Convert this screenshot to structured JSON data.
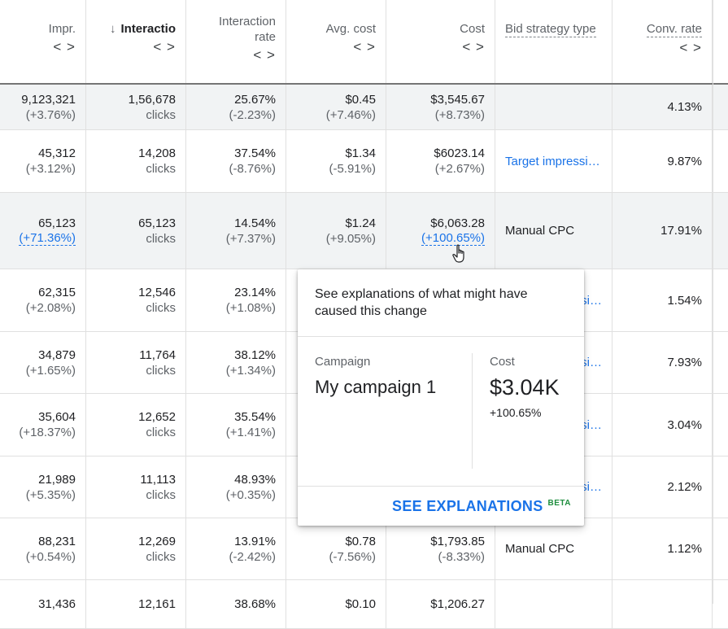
{
  "columns": [
    {
      "key": "impr",
      "label": "Impr.",
      "arrows": "< >"
    },
    {
      "key": "interactions",
      "label": "Interactio",
      "arrows": "< >",
      "sort_icon": "↓"
    },
    {
      "key": "rate",
      "label": "Interaction rate",
      "arrows": "< >"
    },
    {
      "key": "avg",
      "label": "Avg. cost",
      "arrows": "< >"
    },
    {
      "key": "cost",
      "label": "Cost",
      "arrows": "< >"
    },
    {
      "key": "bid",
      "label": "Bid strategy type"
    },
    {
      "key": "conv",
      "label": "Conv. rate",
      "arrows": "< >"
    }
  ],
  "rows": [
    {
      "impr": "9,123,321",
      "impr_d": "(+3.76%)",
      "int": "1,56,678",
      "int_u": "clicks",
      "rate": "25.67%",
      "rate_d": "(-2.23%)",
      "avg": "$0.45",
      "avg_d": "(+7.46%)",
      "cost": "$3,545.67",
      "cost_d": "(+8.73%)",
      "bid": "",
      "conv": "4.13%"
    },
    {
      "impr": "45,312",
      "impr_d": "(+3.12%)",
      "int": "14,208",
      "int_u": "clicks",
      "rate": "37.54%",
      "rate_d": "(-8.76%)",
      "avg": "$1.34",
      "avg_d": "(-5.91%)",
      "cost": "$6023.14",
      "cost_d": "(+2.67%)",
      "bid": "Target impressi…",
      "conv": "9.87%"
    },
    {
      "impr": "65,123",
      "impr_d": "(+71.36%)",
      "int": "65,123",
      "int_u": "clicks",
      "rate": "14.54%",
      "rate_d": "(+7.37%)",
      "avg": "$1.24",
      "avg_d": "(+9.05%)",
      "cost": "$6,063.28",
      "cost_d": "(+100.65%)",
      "bid": "Manual CPC",
      "conv": "17.91%"
    },
    {
      "impr": "62,315",
      "impr_d": "(+2.08%)",
      "int": "12,546",
      "int_u": "clicks",
      "rate": "23.14%",
      "rate_d": "(+1.08%)",
      "avg": "",
      "avg_d": "",
      "cost": "",
      "cost_d": "",
      "bid": "si…",
      "conv": "1.54%"
    },
    {
      "impr": "34,879",
      "impr_d": "(+1.65%)",
      "int": "11,764",
      "int_u": "clicks",
      "rate": "38.12%",
      "rate_d": "(+1.34%)",
      "avg": "",
      "avg_d": "",
      "cost": "",
      "cost_d": "",
      "bid": "si…",
      "conv": "7.93%"
    },
    {
      "impr": "35,604",
      "impr_d": "(+18.37%)",
      "int": "12,652",
      "int_u": "clicks",
      "rate": "35.54%",
      "rate_d": "(+1.41%)",
      "avg": "",
      "avg_d": "",
      "cost": "",
      "cost_d": "",
      "bid": "si…",
      "conv": "3.04%"
    },
    {
      "impr": "21,989",
      "impr_d": "(+5.35%)",
      "int": "11,113",
      "int_u": "clicks",
      "rate": "48.93%",
      "rate_d": "(+0.35%)",
      "avg": "",
      "avg_d": "",
      "cost": "",
      "cost_d": "",
      "bid": "si…",
      "conv": "2.12%"
    },
    {
      "impr": "88,231",
      "impr_d": "(+0.54%)",
      "int": "12,269",
      "int_u": "clicks",
      "rate": "13.91%",
      "rate_d": "(-2.42%)",
      "avg": "$0.78",
      "avg_d": "(-7.56%)",
      "cost": "$1,793.85",
      "cost_d": "(-8.33%)",
      "bid": "Manual CPC",
      "conv": "1.12%"
    },
    {
      "impr": "31,436",
      "impr_d": "",
      "int": "12,161",
      "int_u": "",
      "rate": "38.68%",
      "rate_d": "",
      "avg": "$0.10",
      "avg_d": "",
      "cost": "$1,206.27",
      "cost_d": "",
      "bid": "",
      "conv": ""
    }
  ],
  "popup": {
    "message": "See explanations of what might have caused this change",
    "campaign_label": "Campaign",
    "campaign_value": "My campaign  1",
    "cost_label": "Cost",
    "cost_value": "$3.04K",
    "cost_delta": "+100.65%",
    "button": "SEE EXPLANATIONS",
    "beta": "BETA"
  },
  "colors": {
    "link": "#1a73e8",
    "beta": "#1e8e3e",
    "row_highlight": "#f1f3f4"
  },
  "icons": {
    "sort": "arrow-down-icon",
    "expand": "chevron-left-right-icon",
    "cursor": "hand-pointer-icon"
  }
}
